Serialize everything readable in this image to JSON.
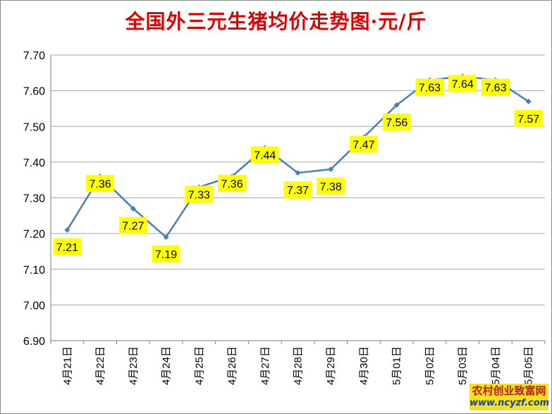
{
  "chart_data": {
    "type": "line",
    "title": "全国外三元生猪均价走势图·元/斤",
    "categories": [
      "4月21日",
      "4月22日",
      "4月23日",
      "4月24日",
      "4月25日",
      "4月26日",
      "4月27日",
      "4月28日",
      "4月29日",
      "4月30日",
      "5月01日",
      "5月02日",
      "5月03日",
      "5月04日",
      "5月05日"
    ],
    "values": [
      7.21,
      7.36,
      7.27,
      7.19,
      7.33,
      7.36,
      7.44,
      7.37,
      7.38,
      7.47,
      7.56,
      7.63,
      7.64,
      7.63,
      7.57
    ],
    "data_labels": [
      "7.21",
      "7.36",
      "7.27",
      "7.19",
      "7.33",
      "7.36",
      "7.44",
      "7.37",
      "7.38",
      "7.47",
      "7.56",
      "7.63",
      "7.64",
      "7.63",
      "7.57"
    ],
    "y_ticks": [
      "6.90",
      "7.00",
      "7.10",
      "7.20",
      "7.30",
      "7.40",
      "7.50",
      "7.60",
      "7.70"
    ],
    "ylim": [
      6.9,
      7.7
    ],
    "grid": true,
    "colors": {
      "line": "#4a7ebb",
      "marker": "#4a7ebb",
      "label_bg": "#ffff00",
      "title": "#e00000"
    }
  },
  "watermark": {
    "line1": "农村创业致富网",
    "line2": "www.ncyzf.com"
  }
}
